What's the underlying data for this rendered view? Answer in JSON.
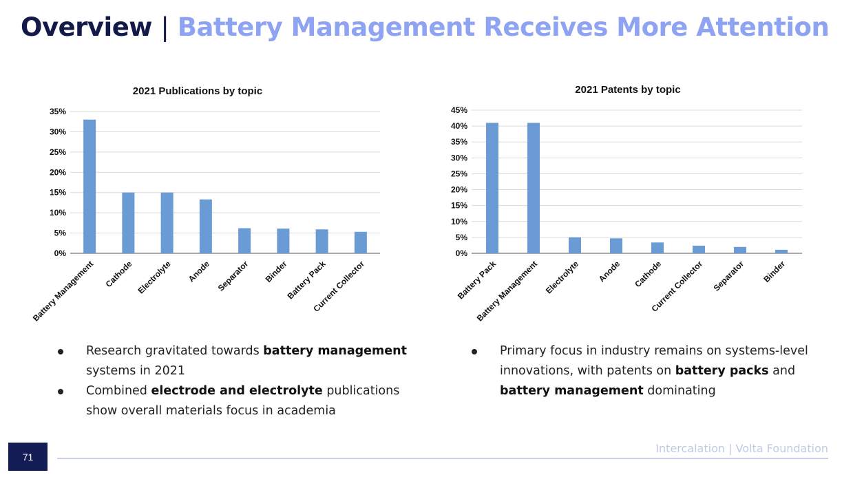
{
  "header": {
    "title_main": "Overview",
    "title_sep": "|",
    "title_accent": "Battery Management Receives More Attention"
  },
  "colors": {
    "bar": "#6a9bd4",
    "grid": "#d9d9d9",
    "axis": "#8c8c8c",
    "title_dark": "#131a4a",
    "title_accent": "#8ea3f2"
  },
  "chart_data": [
    {
      "type": "bar",
      "title": "2021 Publications by topic",
      "categories": [
        "Battery Management",
        "Cathode",
        "Electrolyte",
        "Anode",
        "Separator",
        "Binder",
        "Battery Pack",
        "Current Collector"
      ],
      "values": [
        33,
        15,
        15,
        13.3,
        6.2,
        6.1,
        5.9,
        5.3
      ],
      "ylim": [
        0,
        35
      ],
      "yticks": [
        "0%",
        "5%",
        "10%",
        "15%",
        "20%",
        "25%",
        "30%",
        "35%"
      ],
      "grid": true
    },
    {
      "type": "bar",
      "title": "2021 Patents by topic",
      "categories": [
        "Battery Pack",
        "Battery Management",
        "Electrolyte",
        "Anode",
        "Cathode",
        "Current Collector",
        "Separator",
        "Binder"
      ],
      "values": [
        41,
        41,
        5,
        4.7,
        3.4,
        2.4,
        2,
        1.1
      ],
      "ylim": [
        0,
        45
      ],
      "yticks": [
        "0%",
        "5%",
        "10%",
        "15%",
        "20%",
        "25%",
        "30%",
        "35%",
        "40%",
        "45%"
      ],
      "grid": true
    }
  ],
  "bullets_left": [
    {
      "pre": "Research gravitated towards ",
      "bold": "battery management",
      "post": " systems in 2021"
    },
    {
      "pre": "Combined ",
      "bold": "electrode and electrolyte",
      "post": " publications show overall materials focus in academia"
    }
  ],
  "bullets_right": [
    {
      "pre": "Primary focus in industry remains on systems-level innovations, with patents on ",
      "bold": "battery packs",
      "mid": " and ",
      "bold2": "battery management",
      "post": " dominating"
    }
  ],
  "footer": {
    "page_number": "71",
    "brand": "Intercalation | Volta Foundation"
  }
}
